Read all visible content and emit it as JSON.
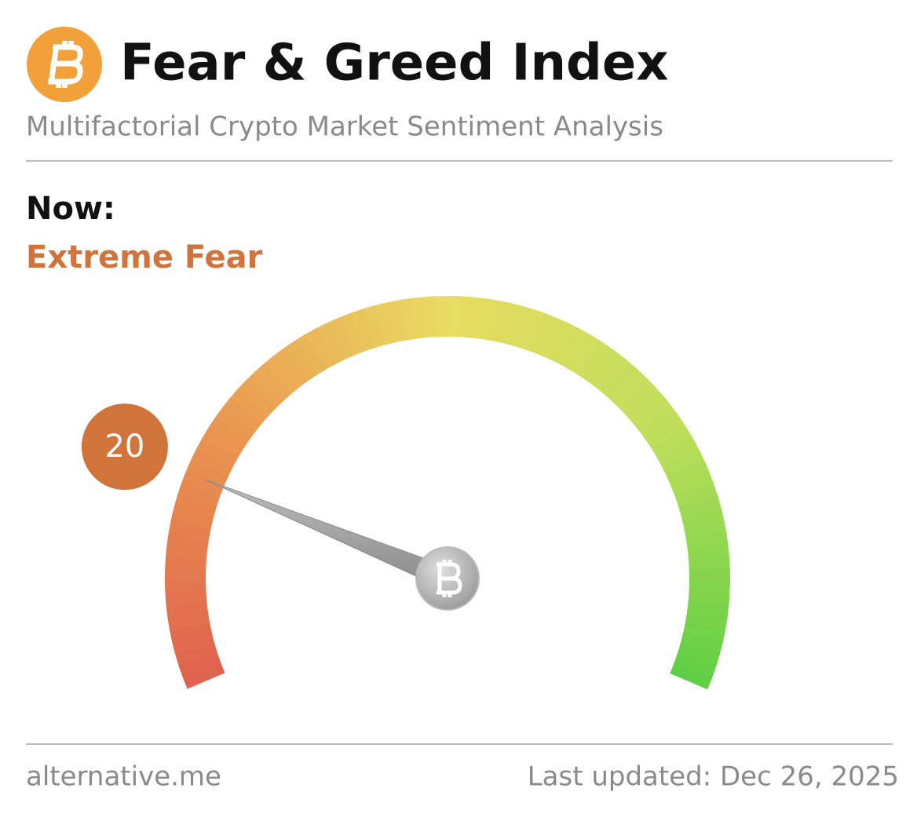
{
  "header": {
    "title": "Fear & Greed Index",
    "subtitle": "Multifactorial Crypto Market Sentiment Analysis"
  },
  "now_label": "Now:",
  "classification": "Extreme Fear",
  "chart_data": {
    "type": "gauge",
    "value": 20,
    "ylim": [
      0,
      100
    ],
    "color": "#d0743c"
  },
  "footer": {
    "source": "alternative.me",
    "updated": "Last updated: Dec 26, 2025"
  }
}
